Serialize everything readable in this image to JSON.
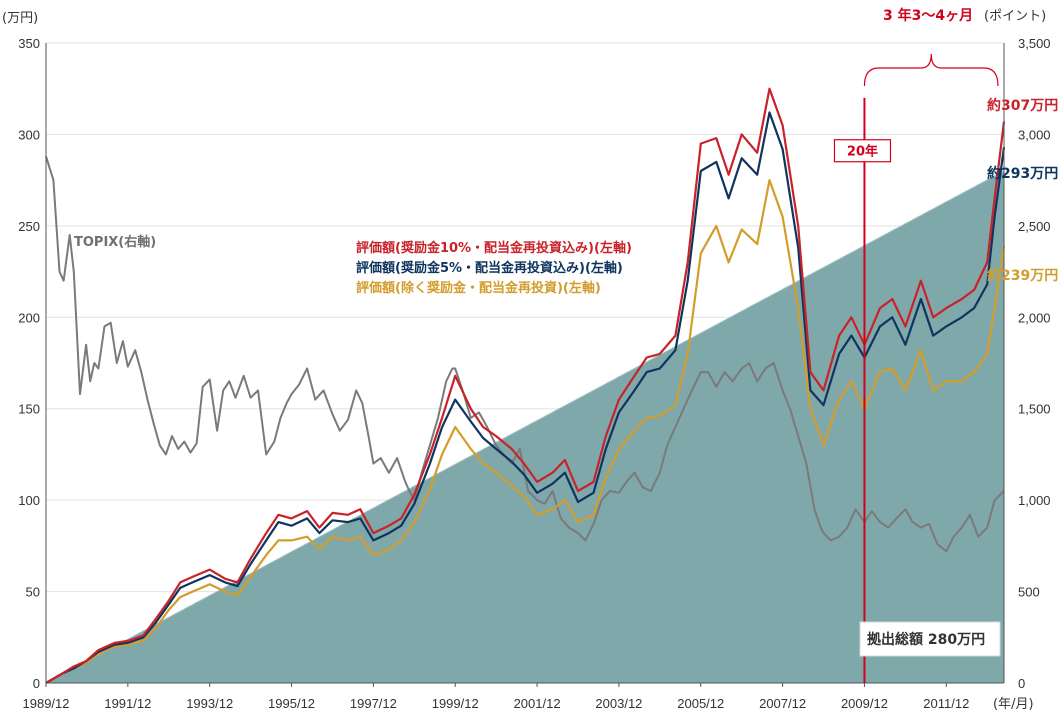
{
  "chart_data": {
    "type": "line",
    "unit_left": "(万円)",
    "unit_right": "(ポイント)",
    "x_unit": "(年/月)",
    "x_tick_labels": [
      "1989/12",
      "1991/12",
      "1993/12",
      "1995/12",
      "1997/12",
      "1999/12",
      "2001/12",
      "2003/12",
      "2005/12",
      "2007/12",
      "2009/12",
      "2011/12"
    ],
    "y_left_ticks": [
      "0",
      "50",
      "100",
      "150",
      "200",
      "250",
      "300",
      "350"
    ],
    "y_right_ticks": [
      "0",
      "500",
      "1,000",
      "1,500",
      "2,000",
      "2,500",
      "3,000",
      "3,500"
    ],
    "ylim_left": [
      0,
      350
    ],
    "ylim_right": [
      0,
      3500
    ],
    "x_range": [
      1989.92,
      2013.33
    ],
    "colors": {
      "contribution": "#7fa8ab",
      "topix": "#7a7a7a",
      "val10": "#c8222a",
      "val5": "#0e3560",
      "val0": "#d39d2c",
      "accent": "#d0021b"
    },
    "contribution": {
      "x": [
        1989.92,
        2013.33
      ],
      "y": [
        0,
        280
      ],
      "label": "拠出総額 280万円"
    },
    "series": [
      {
        "key": "topix",
        "name": "TOPIX(右軸)",
        "axis": "right",
        "x": [
          1989.92,
          1990.1,
          1990.25,
          1990.35,
          1990.5,
          1990.6,
          1990.75,
          1990.9,
          1991.0,
          1991.1,
          1991.2,
          1991.35,
          1991.5,
          1991.65,
          1991.8,
          1991.92,
          1992.1,
          1992.25,
          1992.4,
          1992.55,
          1992.7,
          1992.85,
          1993.0,
          1993.15,
          1993.3,
          1993.45,
          1993.6,
          1993.75,
          1993.92,
          1994.1,
          1994.25,
          1994.4,
          1994.55,
          1994.75,
          1994.92,
          1995.1,
          1995.3,
          1995.5,
          1995.65,
          1995.8,
          1995.92,
          1996.1,
          1996.3,
          1996.5,
          1996.7,
          1996.92,
          1997.1,
          1997.3,
          1997.5,
          1997.65,
          1997.8,
          1997.92,
          1998.1,
          1998.3,
          1998.5,
          1998.7,
          1998.8,
          1998.92,
          1999.1,
          1999.3,
          1999.5,
          1999.7,
          1999.85,
          1999.92,
          2000.1,
          2000.3,
          2000.5,
          2000.7,
          2000.92,
          2001.1,
          2001.3,
          2001.5,
          2001.7,
          2001.92,
          2002.1,
          2002.3,
          2002.5,
          2002.7,
          2002.92,
          2003.1,
          2003.3,
          2003.5,
          2003.7,
          2003.92,
          2004.1,
          2004.3,
          2004.5,
          2004.7,
          2004.92,
          2005.1,
          2005.3,
          2005.5,
          2005.7,
          2005.92,
          2006.1,
          2006.3,
          2006.5,
          2006.7,
          2006.92,
          2007.1,
          2007.3,
          2007.5,
          2007.7,
          2007.92,
          2008.1,
          2008.3,
          2008.5,
          2008.7,
          2008.85,
          2008.92,
          2009.1,
          2009.3,
          2009.5,
          2009.7,
          2009.92,
          2010.1,
          2010.3,
          2010.5,
          2010.7,
          2010.92,
          2011.1,
          2011.3,
          2011.5,
          2011.7,
          2011.92,
          2012.1,
          2012.3,
          2012.5,
          2012.7,
          2012.92,
          2013.1,
          2013.33
        ],
        "y": [
          2880,
          2750,
          2250,
          2200,
          2450,
          2250,
          1580,
          1850,
          1650,
          1750,
          1720,
          1950,
          1970,
          1750,
          1870,
          1730,
          1820,
          1700,
          1550,
          1420,
          1300,
          1250,
          1350,
          1280,
          1320,
          1260,
          1310,
          1620,
          1660,
          1380,
          1600,
          1650,
          1560,
          1680,
          1560,
          1600,
          1250,
          1320,
          1450,
          1530,
          1580,
          1630,
          1720,
          1550,
          1600,
          1470,
          1380,
          1440,
          1600,
          1530,
          1350,
          1200,
          1230,
          1150,
          1230,
          1100,
          1050,
          1000,
          1150,
          1300,
          1450,
          1650,
          1720,
          1720,
          1600,
          1450,
          1480,
          1400,
          1300,
          1250,
          1200,
          1280,
          1050,
          1000,
          980,
          1050,
          900,
          850,
          820,
          780,
          870,
          1000,
          1050,
          1040,
          1100,
          1150,
          1070,
          1050,
          1150,
          1300,
          1400,
          1500,
          1600,
          1700,
          1700,
          1620,
          1700,
          1650,
          1720,
          1750,
          1650,
          1720,
          1750,
          1600,
          1500,
          1350,
          1200,
          950,
          850,
          820,
          780,
          800,
          850,
          950,
          880,
          940,
          880,
          850,
          900,
          950,
          880,
          850,
          870,
          760,
          720,
          800,
          850,
          920,
          800,
          850,
          1000,
          1050
        ]
      },
      {
        "key": "val10",
        "name": "評価額(奨励金10%・配当金再投資込み)(左軸)",
        "axis": "left",
        "x": [
          1989.92,
          1990.3,
          1990.6,
          1990.9,
          1991.2,
          1991.6,
          1991.92,
          1992.3,
          1992.6,
          1992.92,
          1993.2,
          1993.5,
          1993.92,
          1994.3,
          1994.6,
          1994.92,
          1995.3,
          1995.6,
          1995.92,
          1996.3,
          1996.6,
          1996.92,
          1997.3,
          1997.6,
          1997.92,
          1998.3,
          1998.6,
          1998.92,
          1999.3,
          1999.6,
          1999.92,
          2000.3,
          2000.6,
          2000.92,
          2001.3,
          2001.6,
          2001.92,
          2002.3,
          2002.6,
          2002.92,
          2003.3,
          2003.6,
          2003.92,
          2004.3,
          2004.6,
          2004.92,
          2005.3,
          2005.6,
          2005.92,
          2006.3,
          2006.6,
          2006.92,
          2007.3,
          2007.6,
          2007.92,
          2008.3,
          2008.6,
          2008.92,
          2009.3,
          2009.6,
          2009.92,
          2010.3,
          2010.6,
          2010.92,
          2011.3,
          2011.6,
          2011.92,
          2012.3,
          2012.6,
          2012.92,
          2013.1,
          2013.33
        ],
        "y": [
          0,
          5,
          9,
          12,
          18,
          22,
          23,
          26,
          35,
          45,
          55,
          58,
          62,
          57,
          55,
          68,
          82,
          92,
          90,
          94,
          85,
          93,
          92,
          95,
          82,
          86,
          90,
          103,
          125,
          145,
          168,
          150,
          140,
          135,
          128,
          120,
          110,
          115,
          122,
          105,
          110,
          135,
          155,
          168,
          178,
          180,
          190,
          230,
          295,
          298,
          278,
          300,
          290,
          325,
          305,
          250,
          170,
          160,
          190,
          200,
          185,
          205,
          210,
          195,
          220,
          200,
          205,
          210,
          215,
          230,
          265,
          307
        ]
      },
      {
        "key": "val5",
        "name": "評価額(奨励金5%・配当金再投資込み)(左軸)",
        "axis": "left",
        "x": [
          1989.92,
          1990.3,
          1990.6,
          1990.9,
          1991.2,
          1991.6,
          1991.92,
          1992.3,
          1992.6,
          1992.92,
          1993.2,
          1993.5,
          1993.92,
          1994.3,
          1994.6,
          1994.92,
          1995.3,
          1995.6,
          1995.92,
          1996.3,
          1996.6,
          1996.92,
          1997.3,
          1997.6,
          1997.92,
          1998.3,
          1998.6,
          1998.92,
          1999.3,
          1999.6,
          1999.92,
          2000.3,
          2000.6,
          2000.92,
          2001.3,
          2001.6,
          2001.92,
          2002.3,
          2002.6,
          2002.92,
          2003.3,
          2003.6,
          2003.92,
          2004.3,
          2004.6,
          2004.92,
          2005.3,
          2005.6,
          2005.92,
          2006.3,
          2006.6,
          2006.92,
          2007.3,
          2007.6,
          2007.92,
          2008.3,
          2008.6,
          2008.92,
          2009.3,
          2009.6,
          2009.92,
          2010.3,
          2010.6,
          2010.92,
          2011.3,
          2011.6,
          2011.92,
          2012.3,
          2012.6,
          2012.92,
          2013.1,
          2013.33
        ],
        "y": [
          0,
          5,
          8,
          12,
          17,
          21,
          22,
          25,
          33,
          43,
          52,
          55,
          59,
          55,
          53,
          65,
          78,
          88,
          86,
          90,
          82,
          89,
          88,
          90,
          78,
          82,
          86,
          98,
          120,
          140,
          155,
          143,
          134,
          128,
          121,
          114,
          104,
          109,
          115,
          99,
          104,
          128,
          148,
          160,
          170,
          172,
          182,
          220,
          280,
          285,
          265,
          287,
          278,
          312,
          292,
          238,
          160,
          152,
          180,
          190,
          178,
          195,
          200,
          185,
          210,
          190,
          195,
          200,
          205,
          218,
          255,
          293
        ]
      },
      {
        "key": "val0",
        "name": "評価額(除く奨励金・配当金再投資)(左軸)",
        "axis": "left",
        "x": [
          1989.92,
          1990.3,
          1990.6,
          1990.9,
          1991.2,
          1991.6,
          1991.92,
          1992.3,
          1992.6,
          1992.92,
          1993.2,
          1993.5,
          1993.92,
          1994.3,
          1994.6,
          1994.92,
          1995.3,
          1995.6,
          1995.92,
          1996.3,
          1996.6,
          1996.92,
          1997.3,
          1997.6,
          1997.92,
          1998.3,
          1998.6,
          1998.92,
          1999.3,
          1999.6,
          1999.92,
          2000.3,
          2000.6,
          2000.92,
          2001.3,
          2001.6,
          2001.92,
          2002.3,
          2002.6,
          2002.92,
          2003.3,
          2003.6,
          2003.92,
          2004.3,
          2004.6,
          2004.92,
          2005.3,
          2005.6,
          2005.92,
          2006.3,
          2006.6,
          2006.92,
          2007.3,
          2007.6,
          2007.92,
          2008.3,
          2008.6,
          2008.92,
          2009.3,
          2009.6,
          2009.92,
          2010.3,
          2010.6,
          2010.92,
          2011.3,
          2011.6,
          2011.92,
          2012.3,
          2012.6,
          2012.92,
          2013.1,
          2013.33
        ],
        "y": [
          0,
          5,
          8,
          11,
          16,
          20,
          21,
          23,
          30,
          40,
          47,
          50,
          54,
          50,
          48,
          58,
          70,
          78,
          78,
          80,
          73,
          80,
          78,
          80,
          70,
          73,
          78,
          88,
          106,
          125,
          140,
          128,
          120,
          115,
          108,
          102,
          92,
          95,
          100,
          88,
          92,
          112,
          128,
          138,
          145,
          146,
          152,
          180,
          235,
          250,
          230,
          248,
          240,
          275,
          255,
          205,
          150,
          130,
          155,
          165,
          150,
          170,
          172,
          160,
          182,
          160,
          165,
          165,
          170,
          180,
          205,
          239
        ]
      }
    ],
    "annotations": {
      "period_label": "3 年3〜4ヶ月",
      "marker_x": 2009.92,
      "marker_label": "20年",
      "end_labels": {
        "val10": "約307万円",
        "val5": "約293万円",
        "val0": "約239万円"
      }
    }
  }
}
